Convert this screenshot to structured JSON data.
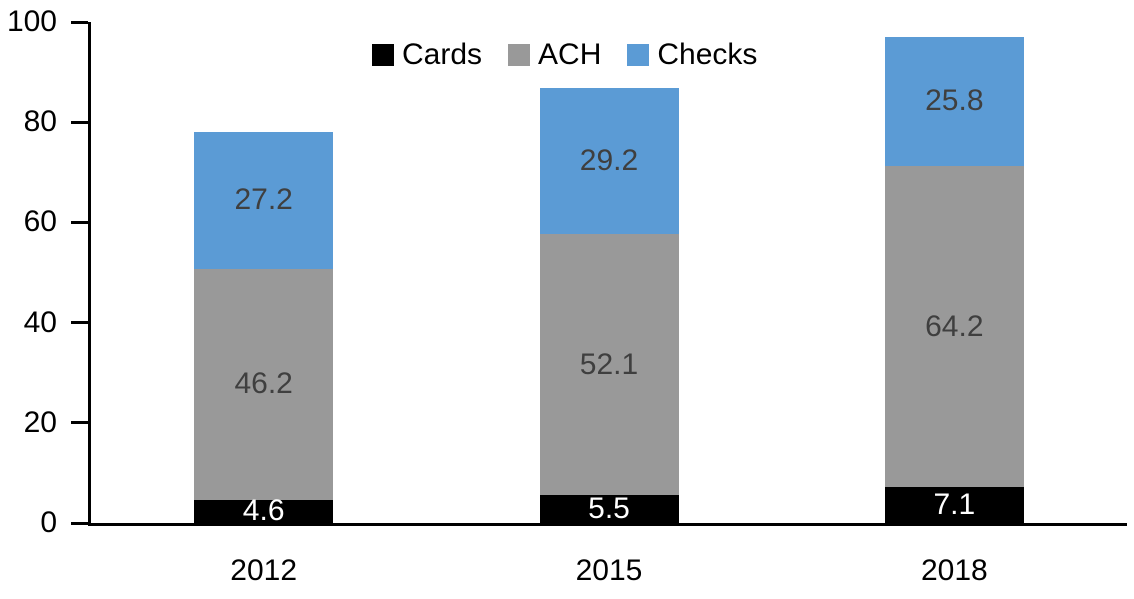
{
  "chart_data": {
    "type": "bar",
    "stacked": true,
    "title": "",
    "xlabel": "",
    "ylabel": "",
    "categories": [
      "2012",
      "2015",
      "2018"
    ],
    "series": [
      {
        "name": "Cards",
        "color": "#000000",
        "label_color": "#ffffff",
        "values": [
          4.6,
          5.5,
          7.1
        ]
      },
      {
        "name": "ACH",
        "color": "#999999",
        "label_color": "#3f3f3f",
        "values": [
          46.2,
          52.1,
          64.2
        ]
      },
      {
        "name": "Checks",
        "color": "#5b9bd5",
        "label_color": "#3f3f3f",
        "values": [
          27.2,
          29.2,
          25.8
        ]
      }
    ],
    "totals": [
      78.0,
      86.8,
      97.1
    ],
    "y_ticks": [
      0,
      20,
      40,
      60,
      80,
      100
    ],
    "ylim": [
      0,
      100
    ],
    "grid": false,
    "legend": {
      "position": "top",
      "entries": [
        "Cards",
        "ACH",
        "Checks"
      ]
    },
    "axis_color": "#000000",
    "tick_label_color": "#000000",
    "background_color": "#ffffff"
  }
}
